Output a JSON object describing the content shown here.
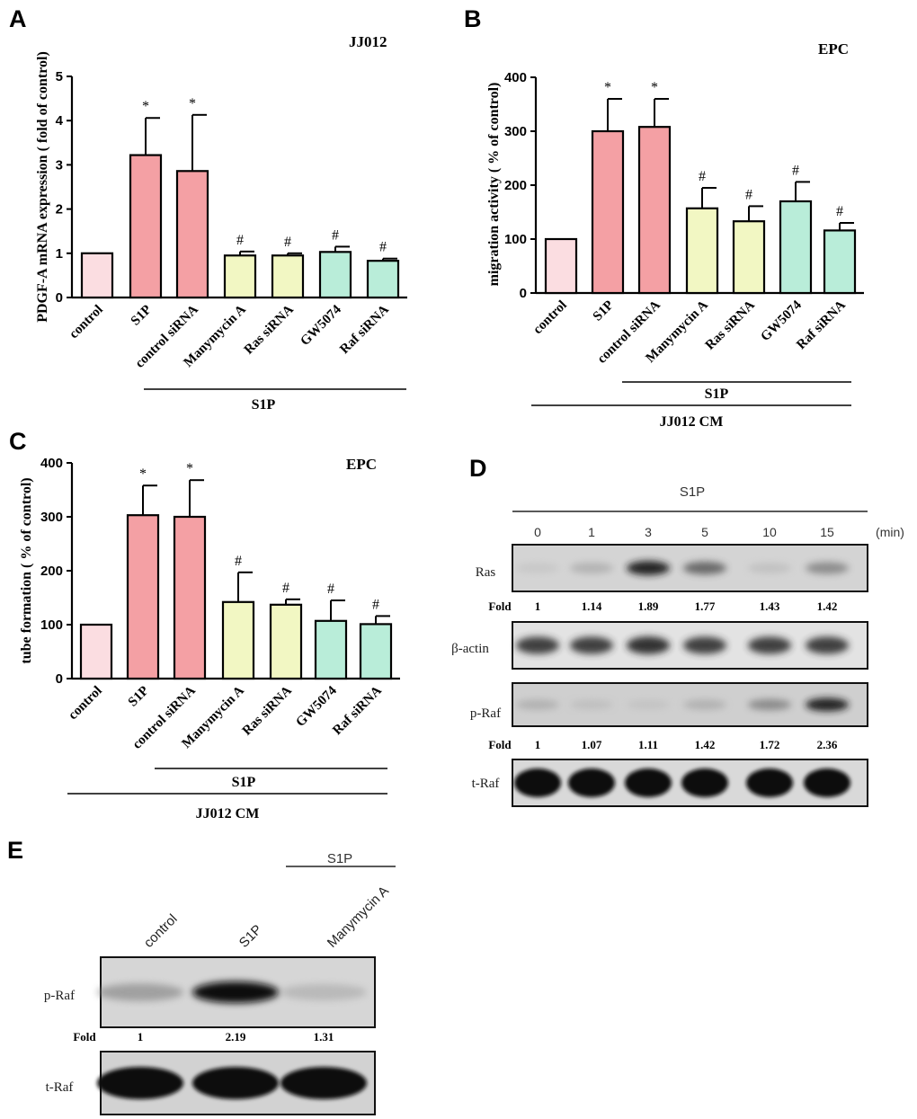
{
  "chart_data": [
    {
      "panel": "A",
      "type": "bar",
      "title": "JJ012",
      "ylabel": "PDGF-A mRNA expression ( fold of control)",
      "ylim": [
        0,
        5
      ],
      "yticks": [
        0,
        1,
        2,
        3,
        4,
        5
      ],
      "categories": [
        "control",
        "S1P",
        "control siRNA",
        "Manymycin A",
        "Ras siRNA",
        "GW5074",
        "Raf siRNA"
      ],
      "values": [
        1.0,
        3.22,
        2.86,
        0.95,
        0.95,
        1.03,
        0.83
      ],
      "errors": [
        0,
        0.84,
        1.27,
        0.09,
        0.05,
        0.12,
        0.05
      ],
      "significance": [
        "",
        "*",
        "*",
        "#",
        "#",
        "#",
        "#"
      ],
      "bar_colors": [
        "#FBDDE1",
        "#F4A0A4",
        "#F4A0A4",
        "#F2F7C3",
        "#F2F7C3",
        "#B9EDD9",
        "#B9EDD9"
      ],
      "group_labels": [
        "S1P"
      ]
    },
    {
      "panel": "B",
      "type": "bar",
      "title": "EPC",
      "ylabel": "migration activity ( % of control)",
      "ylim": [
        0,
        400
      ],
      "yticks": [
        0,
        100,
        200,
        300,
        400
      ],
      "categories": [
        "control",
        "S1P",
        "control siRNA",
        "Manymycin A",
        "Ras siRNA",
        "GW5074",
        "Raf siRNA"
      ],
      "values": [
        100,
        300,
        308,
        157,
        133,
        170,
        116
      ],
      "errors": [
        0,
        60,
        52,
        38,
        28,
        36,
        14
      ],
      "significance": [
        "",
        "*",
        "*",
        "#",
        "#",
        "#",
        "#"
      ],
      "bar_colors": [
        "#FBDDE1",
        "#F4A0A4",
        "#F4A0A4",
        "#F2F7C3",
        "#F2F7C3",
        "#B9EDD9",
        "#B9EDD9"
      ],
      "group_labels": [
        "S1P",
        "JJ012 CM"
      ]
    },
    {
      "panel": "C",
      "type": "bar",
      "title": "EPC",
      "ylabel": "tube formation ( % of control)",
      "ylim": [
        0,
        400
      ],
      "yticks": [
        0,
        100,
        200,
        300,
        400
      ],
      "categories": [
        "control",
        "S1P",
        "control siRNA",
        "Manymycin A",
        "Ras siRNA",
        "GW5074",
        "Raf siRNA"
      ],
      "values": [
        100,
        303,
        300,
        142,
        137,
        107,
        101
      ],
      "errors": [
        0,
        55,
        68,
        55,
        10,
        38,
        15
      ],
      "significance": [
        "",
        "*",
        "*",
        "#",
        "#",
        "#",
        "#"
      ],
      "bar_colors": [
        "#FBDDE1",
        "#F4A0A4",
        "#F4A0A4",
        "#F2F7C3",
        "#F2F7C3",
        "#B9EDD9",
        "#B9EDD9"
      ],
      "group_labels": [
        "S1P",
        "JJ012 CM"
      ]
    }
  ],
  "panel_d": {
    "label": "D",
    "header": "S1P",
    "timepoints": [
      "0",
      "1",
      "3",
      "5",
      "10",
      "15"
    ],
    "unit": "(min)",
    "fold_label": "Fold",
    "blots": [
      {
        "name": "Ras",
        "intensities": [
          0.2,
          0.35,
          0.95,
          0.7,
          0.25,
          0.55
        ]
      },
      {
        "name": "β-actin",
        "intensities": [
          0.85,
          0.85,
          0.9,
          0.85,
          0.85,
          0.85
        ]
      },
      {
        "name": "p-Raf",
        "intensities": [
          0.35,
          0.25,
          0.22,
          0.35,
          0.55,
          0.95
        ]
      },
      {
        "name": "t-Raf",
        "intensities": [
          1.0,
          1.0,
          1.0,
          1.0,
          1.0,
          1.0
        ]
      }
    ],
    "ras_fold": [
      "1",
      "1.14",
      "1.89",
      "1.77",
      "1.43",
      "1.42"
    ],
    "praf_fold": [
      "1",
      "1.07",
      "1.11",
      "1.42",
      "1.72",
      "2.36"
    ]
  },
  "panel_e": {
    "label": "E",
    "header": "S1P",
    "lanes": [
      "control",
      "S1P",
      "Manymycin A"
    ],
    "fold_label": "Fold",
    "fold": [
      "1",
      "2.19",
      "1.31"
    ],
    "blots": [
      {
        "name": "p-Raf",
        "intensities": [
          0.45,
          1.0,
          0.3
        ]
      },
      {
        "name": "t-Raf",
        "intensities": [
          1.0,
          1.0,
          1.0
        ]
      }
    ]
  }
}
